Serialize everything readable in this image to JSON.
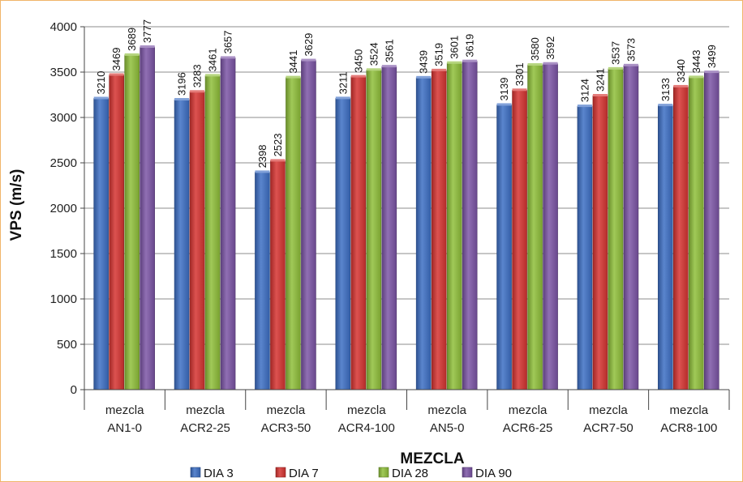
{
  "chart_data": {
    "type": "bar",
    "title": "",
    "xlabel": "MEZCLA",
    "ylabel": "VPS (m/s)",
    "ylim": [
      0,
      4000
    ],
    "y_ticks": [
      0,
      500,
      1000,
      1500,
      2000,
      2500,
      3000,
      3500,
      4000
    ],
    "grid": true,
    "legend_position": "bottom",
    "categories": [
      [
        "mezcla",
        "AN1-0"
      ],
      [
        "mezcla",
        "ACR2-25"
      ],
      [
        "mezcla",
        "ACR3-50"
      ],
      [
        "mezcla",
        "ACR4-100"
      ],
      [
        "mezcla",
        "AN5-0"
      ],
      [
        "mezcla",
        "ACR6-25"
      ],
      [
        "mezcla",
        "ACR7-50"
      ],
      [
        "mezcla",
        "ACR8-100"
      ]
    ],
    "series": [
      {
        "name": "DIA 3",
        "color": "#3d6fc4",
        "values": [
          3210,
          3196,
          2398,
          3211,
          3439,
          3139,
          3124,
          3133
        ]
      },
      {
        "name": "DIA 7",
        "color": "#d63431",
        "values": [
          3469,
          3283,
          2523,
          3450,
          3519,
          3301,
          3241,
          3340
        ]
      },
      {
        "name": "DIA 28",
        "color": "#8fbf3a",
        "values": [
          3689,
          3461,
          3441,
          3524,
          3601,
          3580,
          3537,
          3443
        ]
      },
      {
        "name": "DIA 90",
        "color": "#7c55a6",
        "values": [
          3777,
          3657,
          3629,
          3561,
          3619,
          3592,
          3573,
          3499
        ]
      }
    ]
  }
}
